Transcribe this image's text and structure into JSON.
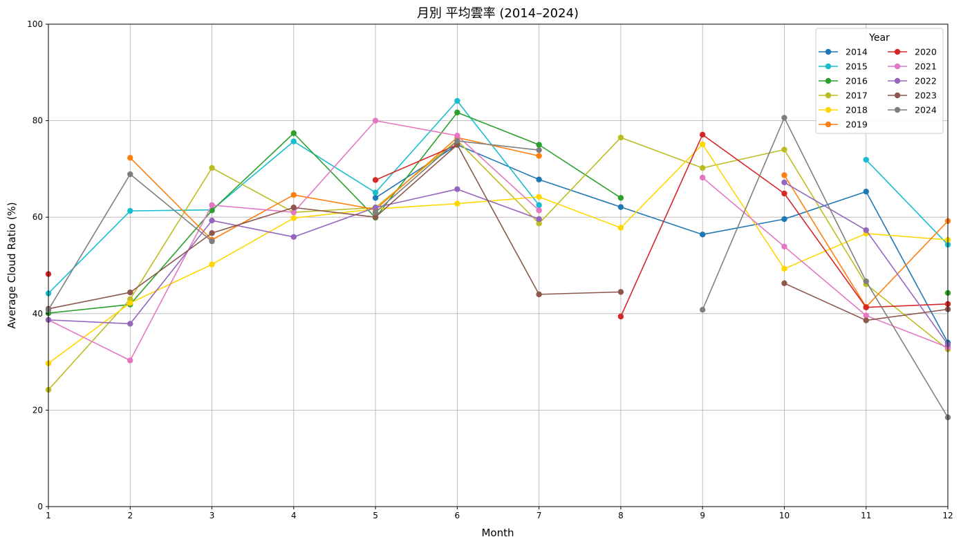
{
  "chart_data": {
    "type": "line",
    "title": "月別 平均雲率 (2014–2024)",
    "xlabel": "Month",
    "ylabel": "Average Cloud Ratio (%)",
    "xlim": [
      1,
      12
    ],
    "ylim": [
      0,
      100
    ],
    "x_ticks": [
      1,
      2,
      3,
      4,
      5,
      6,
      7,
      8,
      9,
      10,
      11,
      12
    ],
    "y_ticks": [
      0,
      20,
      40,
      60,
      80,
      100
    ],
    "grid": true,
    "legend": {
      "title": "Year",
      "placement": "top-right",
      "columns": 2
    },
    "x": [
      1,
      2,
      3,
      4,
      5,
      6,
      7,
      8,
      9,
      10,
      11,
      12
    ],
    "series": [
      {
        "name": "2014",
        "color": "#1f77b4",
        "values": [
          null,
          null,
          null,
          null,
          64.0,
          75.0,
          67.8,
          62.1,
          56.4,
          59.6,
          65.3,
          34.0
        ]
      },
      {
        "name": "2015",
        "color": "#17becf",
        "values": [
          44.2,
          61.3,
          61.5,
          75.7,
          65.1,
          84.1,
          62.5,
          null,
          null,
          null,
          71.9,
          54.3
        ]
      },
      {
        "name": "2016",
        "color": "#2ca02c",
        "values": [
          40.1,
          41.9,
          61.4,
          77.4,
          59.9,
          81.7,
          75.0,
          64.0,
          null,
          null,
          null,
          44.3
        ]
      },
      {
        "name": "2017",
        "color": "#bcbd22",
        "values": [
          24.2,
          43.0,
          70.2,
          61.0,
          62.0,
          75.9,
          58.7,
          76.5,
          70.2,
          74.0,
          46.1,
          32.6
        ]
      },
      {
        "name": "2018",
        "color": "#ffd700",
        "values": [
          29.7,
          42.2,
          50.2,
          59.8,
          61.7,
          62.8,
          64.2,
          57.8,
          75.1,
          49.3,
          56.6,
          55.3
        ]
      },
      {
        "name": "2019",
        "color": "#ff7f0e",
        "values": [
          null,
          72.3,
          55.3,
          64.6,
          61.6,
          76.5,
          72.7,
          null,
          null,
          68.7,
          41.4,
          59.2
        ]
      },
      {
        "name": "2020",
        "color": "#d62728",
        "values": [
          48.2,
          null,
          null,
          null,
          67.7,
          75.0,
          null,
          39.4,
          77.1,
          64.9,
          41.3,
          42.0
        ]
      },
      {
        "name": "2021",
        "color": "#e377c2",
        "values": [
          38.7,
          30.3,
          62.5,
          61.0,
          80.0,
          76.9,
          61.4,
          null,
          68.2,
          53.9,
          39.6,
          33.0
        ]
      },
      {
        "name": "2022",
        "color": "#9467bd",
        "values": [
          38.7,
          37.9,
          59.3,
          55.9,
          62.0,
          65.8,
          59.6,
          null,
          null,
          67.2,
          57.3,
          33.6
        ]
      },
      {
        "name": "2023",
        "color": "#8c564b",
        "values": [
          41.0,
          44.4,
          56.7,
          62.0,
          60.0,
          75.0,
          44.0,
          44.5,
          null,
          46.3,
          38.6,
          40.9
        ]
      },
      {
        "name": "2024",
        "color": "#7f7f7f",
        "values": [
          40.8,
          68.9,
          55.0,
          null,
          61.0,
          75.8,
          73.9,
          null,
          40.8,
          80.6,
          46.7,
          18.5
        ]
      }
    ]
  }
}
